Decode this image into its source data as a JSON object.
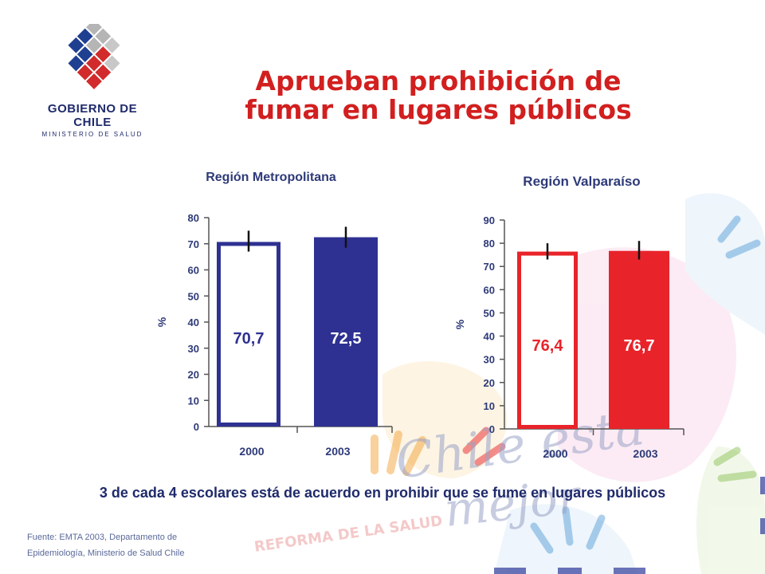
{
  "logo": {
    "line1": "GOBIERNO DE CHILE",
    "line2": "MINISTERIO DE SALUD",
    "icon": "chile-government-emblem"
  },
  "title": {
    "line1": "Aprueban prohibición de",
    "line2": "fumar en lugares públicos",
    "color": "#d21f1f"
  },
  "background": {
    "line1": "Chile está",
    "line2": "mejor",
    "line3": "REFORMA DE LA SALUD"
  },
  "chart_data": [
    {
      "type": "bar",
      "title": "Región Metropolitana",
      "categories": [
        "2000",
        "2003"
      ],
      "values": [
        70.7,
        72.5
      ],
      "labels": [
        "70,7",
        "72,5"
      ],
      "error_bars": [
        [
          67,
          75
        ],
        [
          68.5,
          76.5
        ]
      ],
      "ylabel": "%",
      "xlabel": "",
      "ylim": [
        0,
        80
      ],
      "yticks": [
        "0",
        "10",
        "20",
        "30",
        "40",
        "50",
        "60",
        "70",
        "80"
      ],
      "bar_styles": [
        "outline",
        "filled"
      ],
      "color": "#2e3192",
      "grid": false
    },
    {
      "type": "bar",
      "title": "Región Valparaíso",
      "categories": [
        "2000",
        "2003"
      ],
      "values": [
        76.4,
        76.7
      ],
      "labels": [
        "76,4",
        "76,7"
      ],
      "error_bars": [
        [
          73,
          80
        ],
        [
          73,
          81
        ]
      ],
      "ylabel": "%",
      "xlabel": "",
      "ylim": [
        0,
        90
      ],
      "yticks": [
        "0",
        "10",
        "20",
        "30",
        "40",
        "50",
        "60",
        "70",
        "80",
        "90"
      ],
      "bar_styles": [
        "outline",
        "filled"
      ],
      "color": "#e8242a",
      "grid": false
    }
  ],
  "caption": "3 de cada 4 escolares está de acuerdo en prohibir que se fume en lugares públicos",
  "source": {
    "line1": "Fuente: EMTA 2003, Departamento de",
    "line2": "Epidemiología, Ministerio de Salud Chile"
  }
}
